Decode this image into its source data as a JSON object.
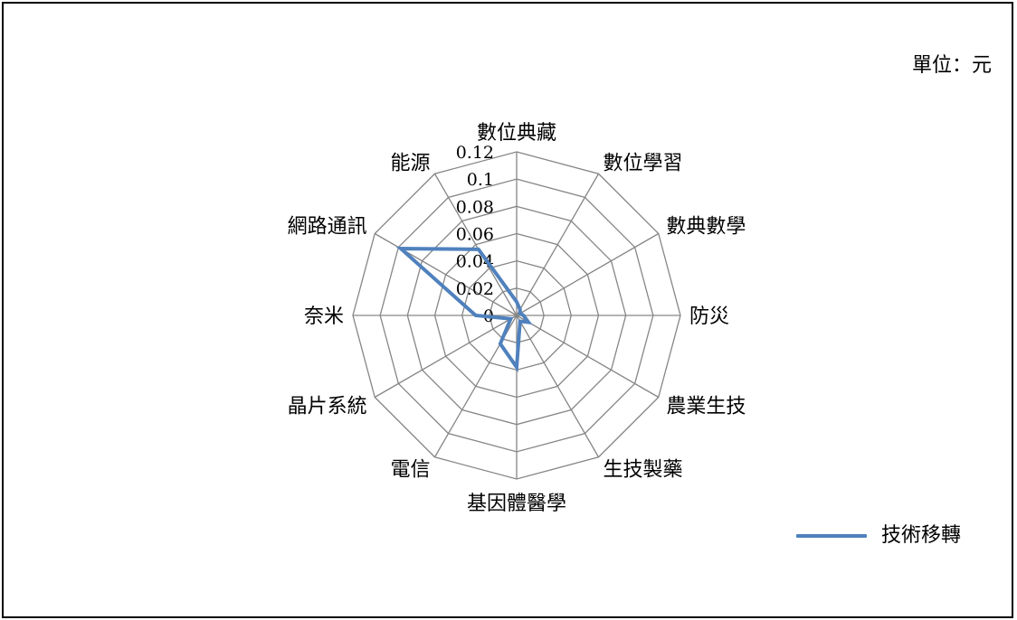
{
  "unit_label": "單位：元",
  "legend": {
    "label": "技術移轉",
    "color": "#4F81BD"
  },
  "chart_data": {
    "type": "radar",
    "categories": [
      "數位典藏",
      "數位學習",
      "數典數學",
      "防災",
      "農業生技",
      "生技製藥",
      "基因體醫學",
      "電信",
      "晶片系統",
      "奈米",
      "網路通訊",
      "能源"
    ],
    "series": [
      {
        "name": "技術移轉",
        "values": [
          0.01,
          0.005,
          0.003,
          0.005,
          0.01,
          0.005,
          0.038,
          0.024,
          0.005,
          0.03,
          0.098,
          0.056
        ]
      }
    ],
    "rmax": 0.12,
    "ticks": [
      "0",
      "0.02",
      "0.04",
      "0.06",
      "0.08",
      "0.1",
      "0.12"
    ],
    "grid_color": "#868686",
    "series_color": "#4F81BD",
    "legend_position": "bottom-right"
  }
}
